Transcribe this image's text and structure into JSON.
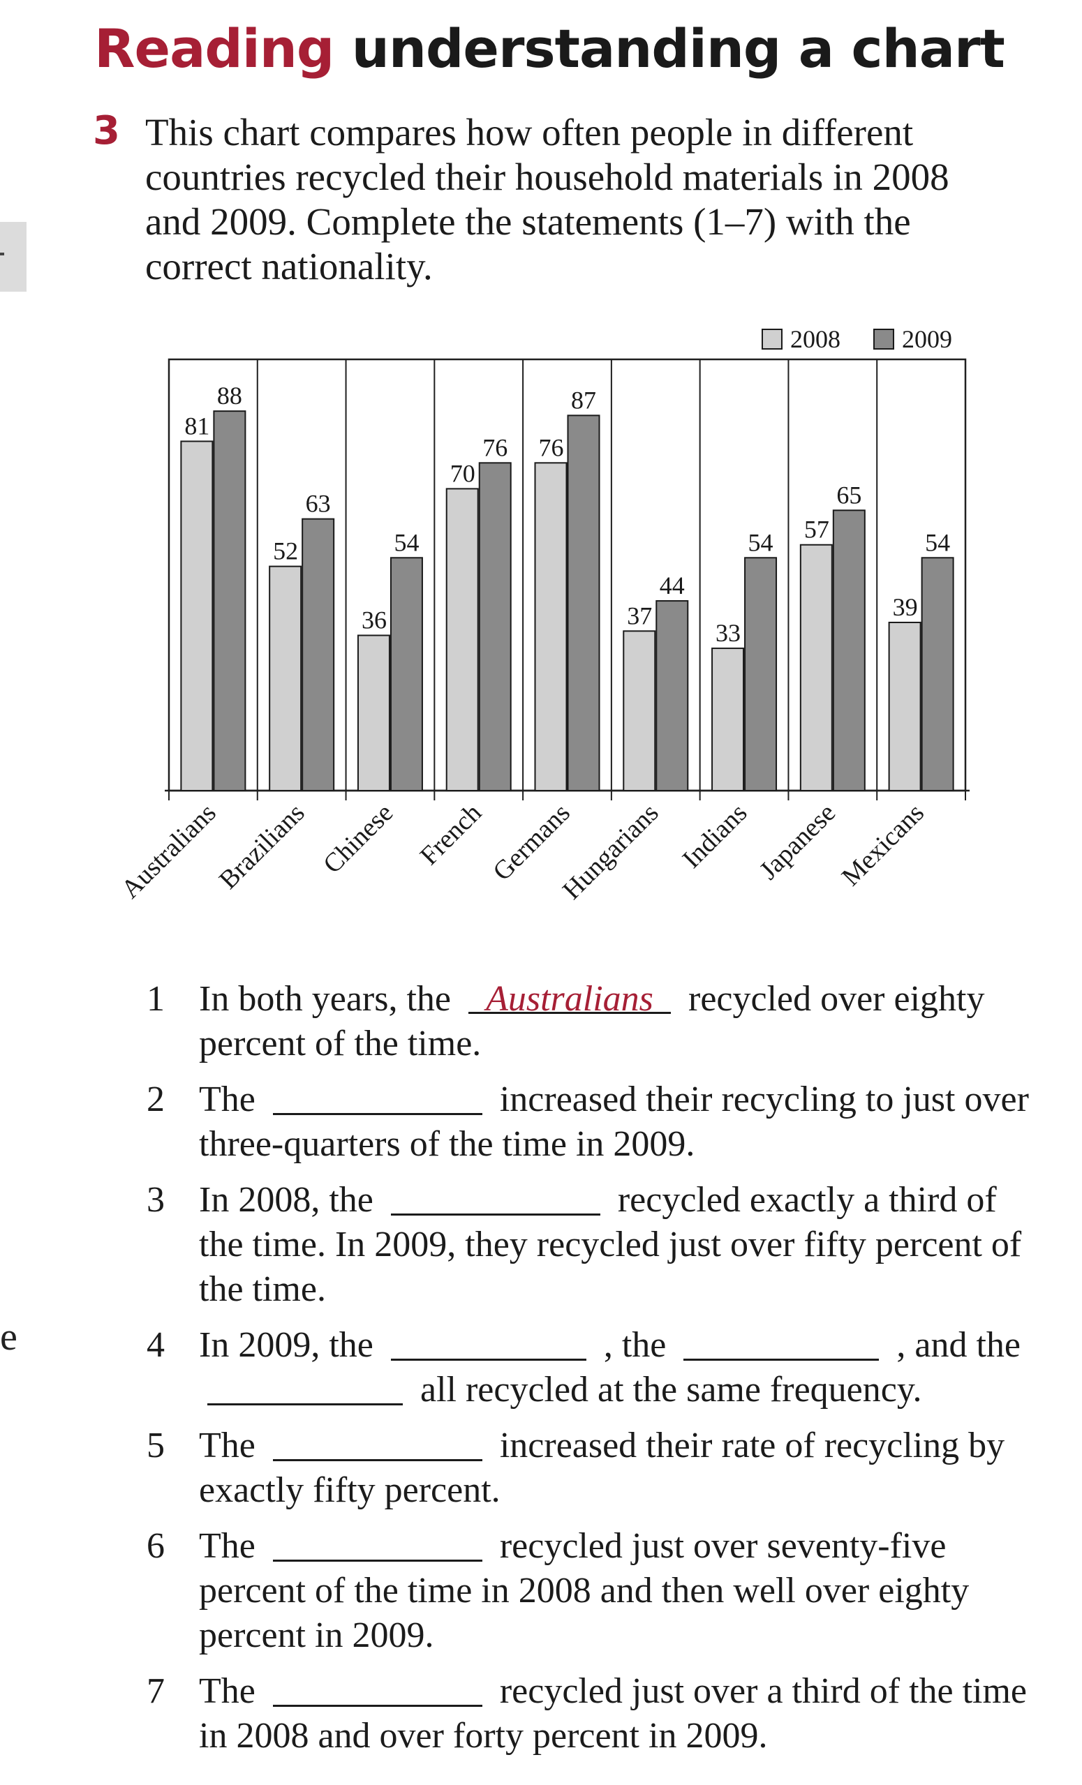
{
  "heading": {
    "accent": "Reading",
    "rest": "understanding a chart"
  },
  "exercise": {
    "number": "3",
    "instruction": "This chart compares how often people in different countries recycled their household materials in 2008 and 2009. Complete the statements (1–7) with the correct nationality."
  },
  "colors": {
    "accent": "#a61f35",
    "bar_2008": "#d0d0d0",
    "bar_2009": "#8a8a8a",
    "grid": "#1f1f1f"
  },
  "chart_data": {
    "type": "bar",
    "title": "",
    "xlabel": "",
    "ylabel": "",
    "ylim": [
      0,
      100
    ],
    "legend_position": "top-right",
    "categories": [
      "Australians",
      "Brazilians",
      "Chinese",
      "French",
      "Germans",
      "Hungarians",
      "Indians",
      "Japanese",
      "Mexicans"
    ],
    "series": [
      {
        "name": "2008",
        "values": [
          81,
          52,
          36,
          70,
          76,
          37,
          33,
          57,
          39
        ]
      },
      {
        "name": "2009",
        "values": [
          88,
          63,
          54,
          76,
          87,
          44,
          54,
          65,
          54
        ]
      }
    ]
  },
  "statements": {
    "s1": {
      "num": "1",
      "before": "In both years, the",
      "answer": "Australians",
      "after": "recycled over eighty percent of the time."
    },
    "s2": {
      "num": "2",
      "before": "The",
      "after": "increased their recycling to just over three-quarters of the time in 2009."
    },
    "s3": {
      "num": "3",
      "before": "In 2008, the",
      "after": "recycled exactly a third of the time. In 2009, they recycled just over fifty percent of the time."
    },
    "s4": {
      "num": "4",
      "before": "In 2009, the",
      "mid1": ", the",
      "mid2": ", and",
      "line2_before": "the",
      "after": "all recycled at the same frequency."
    },
    "s5": {
      "num": "5",
      "before": "The",
      "after": "increased their rate of recycling by exactly fifty percent."
    },
    "s6": {
      "num": "6",
      "before": "The",
      "after": "recycled just over seventy-five percent of the time in 2008 and then well over eighty percent in 2009."
    },
    "s7": {
      "num": "7",
      "before": "The",
      "after": "recycled just over a third of the time in 2008 and over forty percent in 2009."
    }
  }
}
